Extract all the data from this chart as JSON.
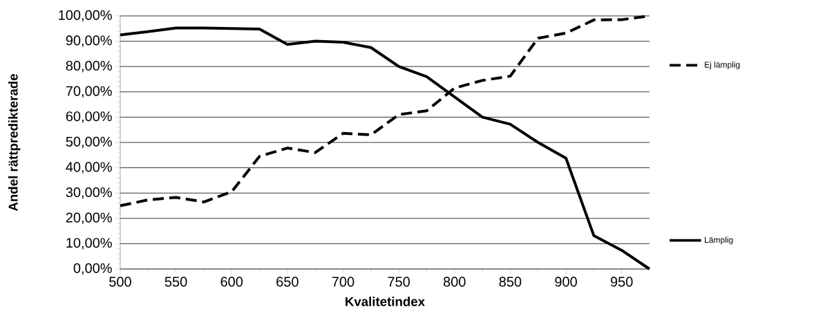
{
  "chart_data": {
    "type": "line",
    "xlabel": "Kvalitetindex",
    "ylabel": "Andel rättpredikterade",
    "x": [
      500,
      525,
      550,
      575,
      600,
      625,
      650,
      675,
      700,
      725,
      750,
      775,
      800,
      825,
      850,
      875,
      900,
      925,
      950,
      975
    ],
    "series": [
      {
        "name": "Ej lämplig",
        "color": "#000000",
        "line_style": "dashed",
        "values": [
          25,
          27.3,
          28.3,
          26.5,
          30.5,
          44.5,
          47.8,
          46,
          53.6,
          53,
          61,
          62.5,
          71.5,
          74.5,
          76.2,
          91.2,
          93.2,
          98.4,
          98.5,
          100
        ]
      },
      {
        "name": "Lämplig",
        "color": "#000000",
        "line_style": "solid",
        "values": [
          92.5,
          93.8,
          95.2,
          95.2,
          95,
          94.8,
          88.7,
          90,
          89.6,
          87.5,
          80,
          76,
          68,
          60,
          57.2,
          50,
          43.8,
          13.2,
          7.4,
          0
        ]
      }
    ],
    "xlim": [
      500,
      975
    ],
    "xticks": [
      500,
      550,
      600,
      650,
      700,
      750,
      800,
      850,
      900,
      950
    ],
    "ylim": [
      0,
      100
    ],
    "yticks": [
      {
        "value": 0,
        "label": "0,00%"
      },
      {
        "value": 10,
        "label": "10,00%"
      },
      {
        "value": 20,
        "label": "20,00%"
      },
      {
        "value": 30,
        "label": "30,00%"
      },
      {
        "value": 40,
        "label": "40,00%"
      },
      {
        "value": 50,
        "label": "50,00%"
      },
      {
        "value": 60,
        "label": "60,00%"
      },
      {
        "value": 70,
        "label": "70,00%"
      },
      {
        "value": 80,
        "label": "80,00%"
      },
      {
        "value": 90,
        "label": "90,00%"
      },
      {
        "value": 100,
        "label": "100,00%"
      }
    ],
    "grid": "y",
    "legend": "right",
    "marker": "none"
  }
}
